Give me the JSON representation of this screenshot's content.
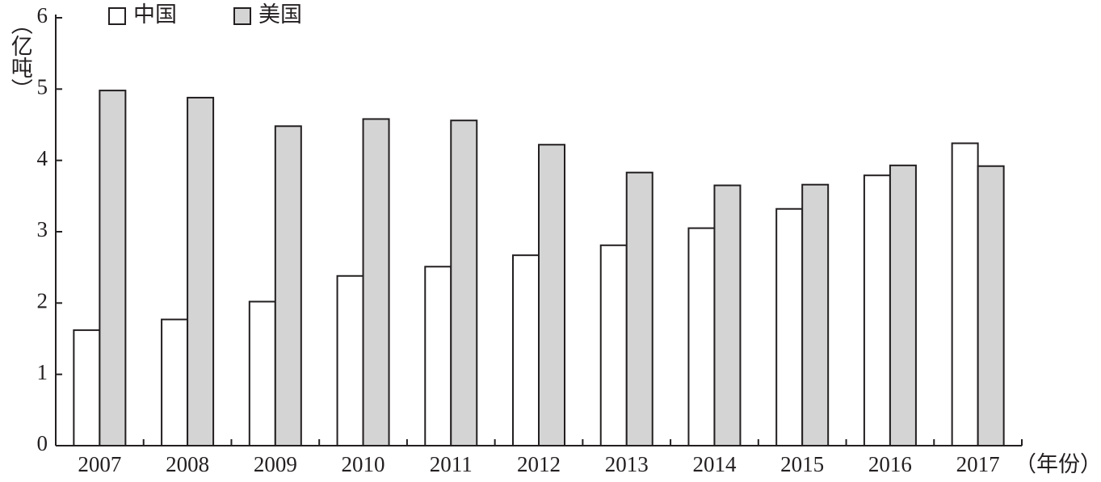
{
  "chart_data": {
    "type": "bar",
    "y_label": "（亿吨）",
    "x_label": "（年份）",
    "categories": [
      "2007",
      "2008",
      "2009",
      "2010",
      "2011",
      "2012",
      "2013",
      "2014",
      "2015",
      "2016",
      "2017"
    ],
    "series": [
      {
        "name": "中国",
        "color": "#ffffff",
        "values": [
          1.62,
          1.77,
          2.02,
          2.38,
          2.51,
          2.67,
          2.81,
          3.05,
          3.32,
          3.79,
          4.24
        ]
      },
      {
        "name": "美国",
        "color": "#d4d4d4",
        "values": [
          4.98,
          4.88,
          4.48,
          4.58,
          4.56,
          4.22,
          3.83,
          3.65,
          3.66,
          3.93,
          3.92
        ]
      }
    ],
    "ylim": [
      0,
      6
    ],
    "yticks": [
      0,
      1,
      2,
      3,
      4,
      5,
      6
    ],
    "legend": "top-left",
    "grid": false
  }
}
